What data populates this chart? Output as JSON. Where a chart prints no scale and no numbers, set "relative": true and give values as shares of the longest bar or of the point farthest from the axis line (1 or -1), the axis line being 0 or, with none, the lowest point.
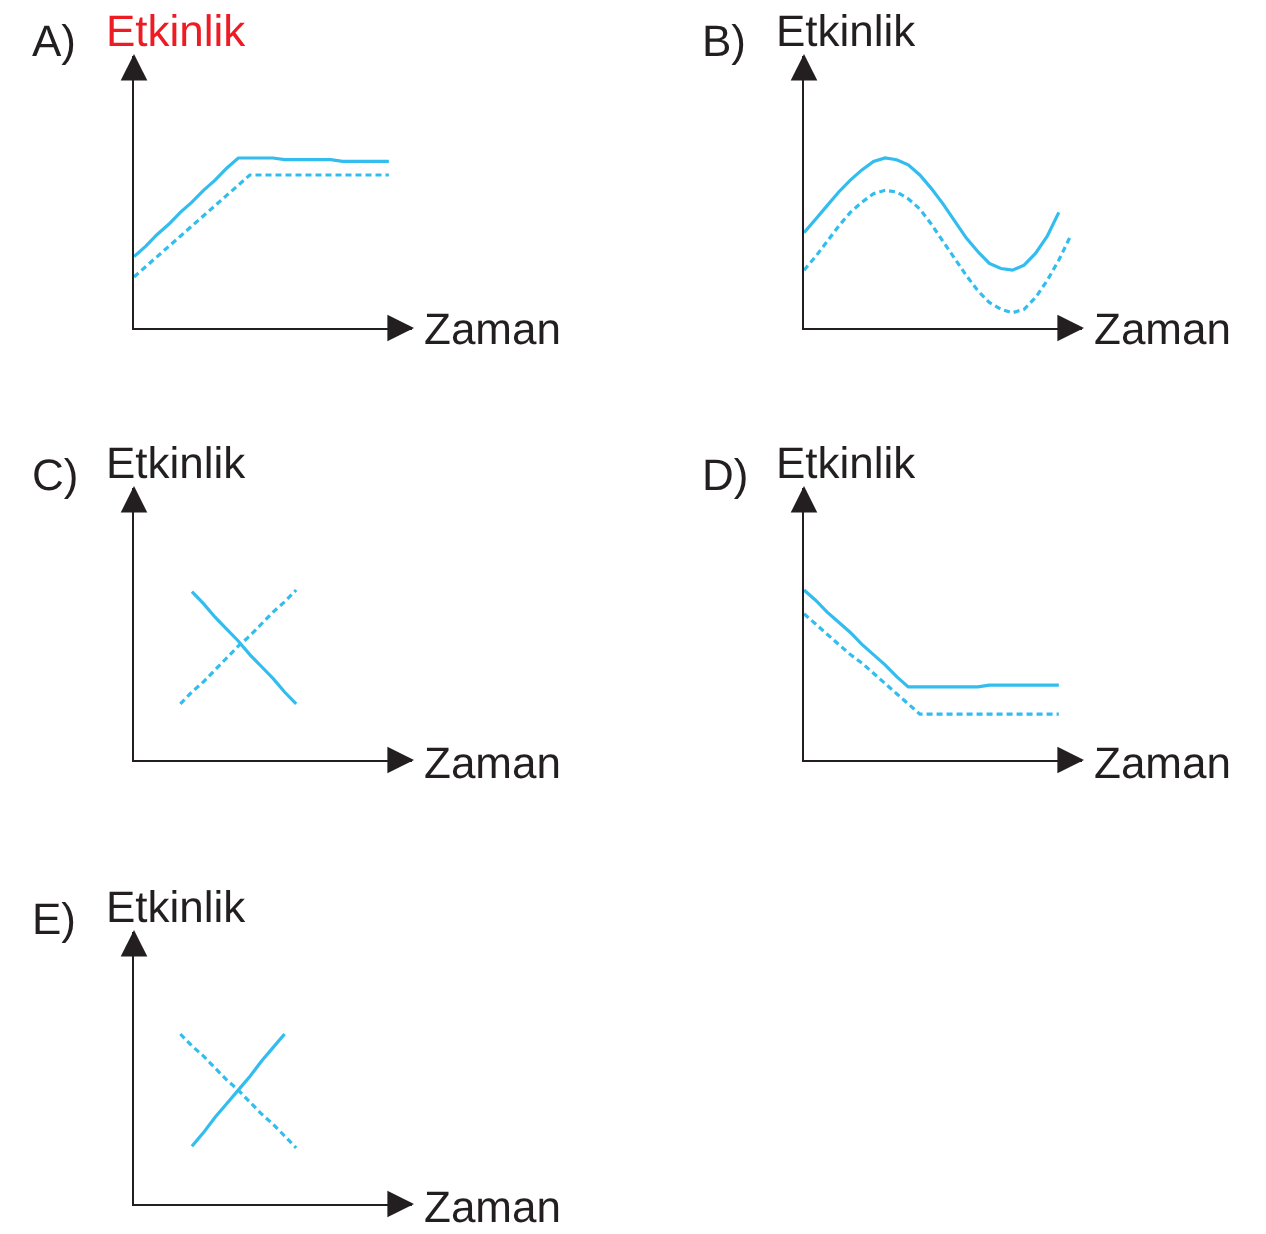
{
  "chart_data": [
    {
      "type": "line",
      "title": "A)",
      "ylabel": "Etkinlik",
      "xlabel": "Zaman",
      "relative": true,
      "categories": [
        null,
        null,
        null,
        null,
        null,
        null,
        null,
        null,
        null,
        null,
        null,
        null,
        null,
        null,
        null,
        null,
        null,
        null,
        null,
        null,
        null,
        null,
        null,
        null,
        null
      ],
      "series": [
        {
          "color": "#33bdef",
          "line_style": "solid",
          "values": [
            0.42,
            0.48,
            0.55,
            0.61,
            0.68,
            0.74,
            0.81,
            0.87,
            0.94,
            1.0,
            1.0,
            1.0,
            1.0,
            0.99,
            0.99,
            0.99,
            0.99,
            0.99,
            0.98,
            0.98,
            0.98,
            0.98,
            0.98,
            null,
            null
          ]
        },
        {
          "color": "#33bdef",
          "line_style": "dashed",
          "values": [
            0.3,
            0.36,
            0.42,
            0.48,
            0.54,
            0.6,
            0.66,
            0.72,
            0.78,
            0.84,
            0.9,
            0.9,
            0.9,
            0.9,
            0.9,
            0.9,
            0.9,
            0.9,
            0.9,
            0.9,
            0.9,
            0.9,
            0.9,
            null,
            null
          ]
        }
      ]
    },
    {
      "type": "line",
      "title": "B)",
      "ylabel": "Etkinlik",
      "xlabel": "Zaman",
      "relative": true,
      "categories": [
        null,
        null,
        null,
        null,
        null,
        null,
        null,
        null,
        null,
        null,
        null,
        null,
        null,
        null,
        null,
        null,
        null,
        null,
        null,
        null,
        null,
        null,
        null,
        null,
        null
      ],
      "series": [
        {
          "color": "#33bdef",
          "line_style": "solid",
          "values": [
            0.56,
            0.64,
            0.72,
            0.8,
            0.87,
            0.93,
            0.98,
            1.0,
            0.99,
            0.96,
            0.9,
            0.82,
            0.73,
            0.63,
            0.53,
            0.45,
            0.38,
            0.35,
            0.34,
            0.37,
            0.44,
            0.54,
            0.68,
            null,
            null
          ]
        },
        {
          "color": "#33bdef",
          "line_style": "dashed",
          "values": [
            0.34,
            0.42,
            0.51,
            0.6,
            0.68,
            0.74,
            0.79,
            0.81,
            0.8,
            0.76,
            0.7,
            0.61,
            0.51,
            0.41,
            0.31,
            0.22,
            0.15,
            0.11,
            0.09,
            0.11,
            0.18,
            0.28,
            0.4,
            0.54,
            null
          ]
        }
      ]
    },
    {
      "type": "line",
      "title": "C)",
      "ylabel": "Etkinlik",
      "xlabel": "Zaman",
      "relative": true,
      "categories": [
        null,
        null,
        null,
        null,
        null,
        null,
        null,
        null,
        null,
        null,
        null,
        null,
        null,
        null,
        null,
        null,
        null,
        null,
        null,
        null,
        null,
        null,
        null,
        null,
        null
      ],
      "series": [
        {
          "color": "#33bdef",
          "line_style": "solid",
          "values": [
            null,
            null,
            null,
            null,
            null,
            0.99,
            0.92,
            0.84,
            0.77,
            0.7,
            0.62,
            0.55,
            0.48,
            0.4,
            0.33,
            null,
            null,
            null,
            null,
            null,
            null,
            null,
            null,
            null,
            null
          ]
        },
        {
          "color": "#33bdef",
          "line_style": "dashed",
          "values": [
            null,
            null,
            null,
            null,
            0.33,
            0.4,
            0.46,
            0.53,
            0.6,
            0.67,
            0.73,
            0.8,
            0.87,
            0.93,
            1.0,
            null,
            null,
            null,
            null,
            null,
            null,
            null,
            null,
            null,
            null
          ]
        }
      ]
    },
    {
      "type": "line",
      "title": "D)",
      "ylabel": "Etkinlik",
      "xlabel": "Zaman",
      "relative": true,
      "categories": [
        null,
        null,
        null,
        null,
        null,
        null,
        null,
        null,
        null,
        null,
        null,
        null,
        null,
        null,
        null,
        null,
        null,
        null,
        null,
        null,
        null,
        null,
        null,
        null,
        null
      ],
      "series": [
        {
          "color": "#33bdef",
          "line_style": "solid",
          "values": [
            1.0,
            0.94,
            0.87,
            0.81,
            0.75,
            0.68,
            0.62,
            0.56,
            0.49,
            0.43,
            0.43,
            0.43,
            0.43,
            0.43,
            0.43,
            0.43,
            0.44,
            0.44,
            0.44,
            0.44,
            0.44,
            0.44,
            0.44,
            null,
            null
          ]
        },
        {
          "color": "#33bdef",
          "line_style": "dashed",
          "values": [
            0.86,
            0.8,
            0.74,
            0.68,
            0.62,
            0.57,
            0.51,
            0.45,
            0.39,
            0.33,
            0.27,
            0.27,
            0.27,
            0.27,
            0.27,
            0.27,
            0.27,
            0.27,
            0.27,
            0.27,
            0.27,
            0.27,
            0.27,
            null,
            null
          ]
        }
      ]
    },
    {
      "type": "line",
      "title": "E)",
      "ylabel": "Etkinlik",
      "xlabel": "Zaman",
      "relative": true,
      "categories": [
        null,
        null,
        null,
        null,
        null,
        null,
        null,
        null,
        null,
        null,
        null,
        null,
        null,
        null,
        null,
        null,
        null,
        null,
        null,
        null,
        null,
        null,
        null,
        null,
        null
      ],
      "series": [
        {
          "color": "#33bdef",
          "line_style": "solid",
          "values": [
            null,
            null,
            null,
            null,
            null,
            0.34,
            0.42,
            0.51,
            0.59,
            0.67,
            0.75,
            0.84,
            0.92,
            1.0,
            null,
            null,
            null,
            null,
            null,
            null,
            null,
            null,
            null,
            null,
            null
          ]
        },
        {
          "color": "#33bdef",
          "line_style": "dashed",
          "values": [
            null,
            null,
            null,
            null,
            1.0,
            0.93,
            0.87,
            0.8,
            0.73,
            0.67,
            0.6,
            0.53,
            0.47,
            0.4,
            0.33,
            null,
            null,
            null,
            null,
            null,
            null,
            null,
            null,
            null,
            null
          ]
        }
      ]
    }
  ]
}
